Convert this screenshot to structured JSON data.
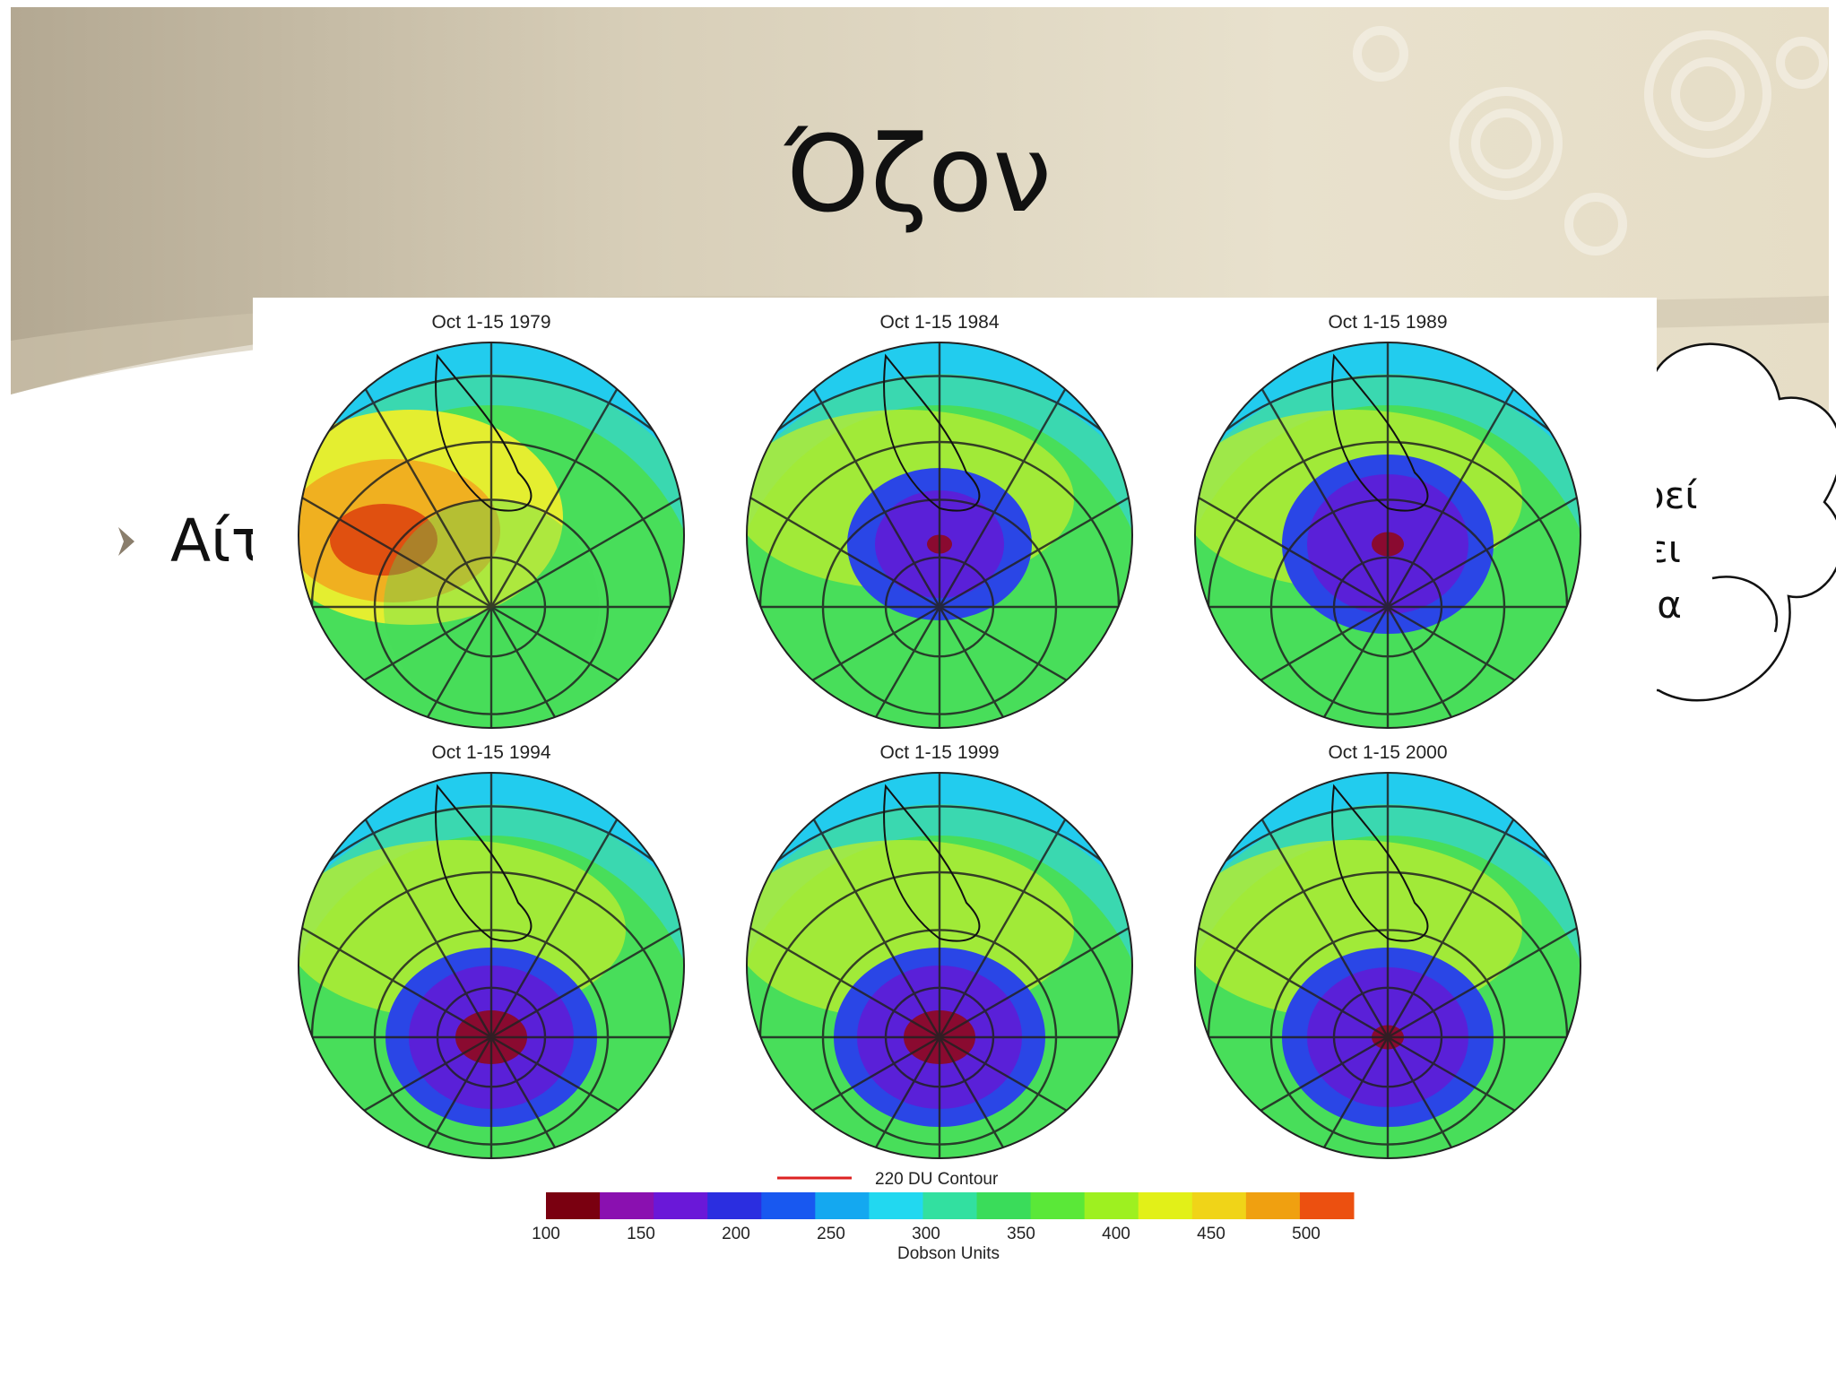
{
  "slide": {
    "title": "Όζον",
    "bullet_text": "Αίτ",
    "cloud_lines": [
      "ρεί",
      "ει",
      "ια"
    ]
  },
  "figure": {
    "panels": [
      {
        "title": "Oct 1-15 1979",
        "hole": "none"
      },
      {
        "title": "Oct 1-15 1984",
        "hole": "medium"
      },
      {
        "title": "Oct 1-15 1989",
        "hole": "large"
      },
      {
        "title": "Oct 1-15 1994",
        "hole": "deep"
      },
      {
        "title": "Oct 1-15 1999",
        "hole": "deep"
      },
      {
        "title": "Oct 1-15 2000",
        "hole": "large"
      }
    ],
    "contour_legend": "220 DU Contour",
    "colorbar": {
      "unit_label": "Dobson Units",
      "ticks": [
        "100",
        "150",
        "200",
        "250",
        "300",
        "350",
        "400",
        "450",
        "500"
      ],
      "colors": [
        "#7a0010",
        "#8a10b0",
        "#6a18d8",
        "#2b2ee0",
        "#1858f0",
        "#14a8f0",
        "#22d8f0",
        "#32e0a0",
        "#3adc5a",
        "#5ae838",
        "#9ef020",
        "#e2f018",
        "#f0d418",
        "#f0a010",
        "#ec5010"
      ]
    }
  }
}
